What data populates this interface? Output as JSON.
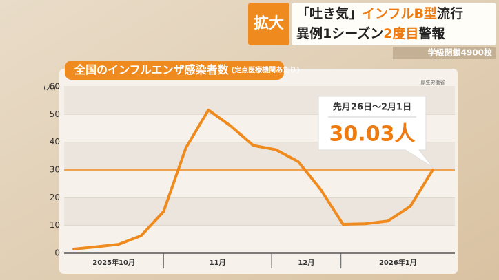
{
  "headline": {
    "badge": "拡大",
    "line1": [
      "「吐き気」",
      "インフルB型",
      "流行"
    ],
    "line2": [
      "異例1シーズン",
      "2度目",
      "警報"
    ],
    "sub": "学級閉鎖4900校"
  },
  "chart_data": {
    "type": "line",
    "title": "全国のインフルエンザ感染者数",
    "subtitle": "(定点医療機関あたり)",
    "source": "厚生労働省",
    "y_unit": "(人)",
    "categories": [
      null,
      null,
      null,
      null,
      null,
      null,
      null,
      null,
      null,
      null,
      null,
      null,
      null,
      null,
      null,
      null,
      null
    ],
    "x_groups": [
      "2025年10月",
      "11月",
      "12月",
      "2026年1月"
    ],
    "series": [
      {
        "name": "感染者数",
        "color": "#ee8a1e",
        "values": [
          1.5,
          2.3,
          3.2,
          6.3,
          15,
          38,
          51.6,
          45.8,
          38.8,
          37.3,
          33,
          23,
          10.4,
          10.6,
          11.6,
          16.9,
          30.03
        ],
        "value_labels": [
          null,
          null,
          null,
          null,
          null,
          null,
          null,
          null,
          null,
          null,
          null,
          null,
          null,
          null,
          null,
          null,
          "30.03人"
        ]
      }
    ],
    "callout_period": "先月26日～2月1日",
    "reference_line": 30,
    "ylim": [
      0,
      60
    ],
    "yticks": [
      0,
      10,
      20,
      30,
      40,
      50,
      60
    ],
    "grid": true
  }
}
